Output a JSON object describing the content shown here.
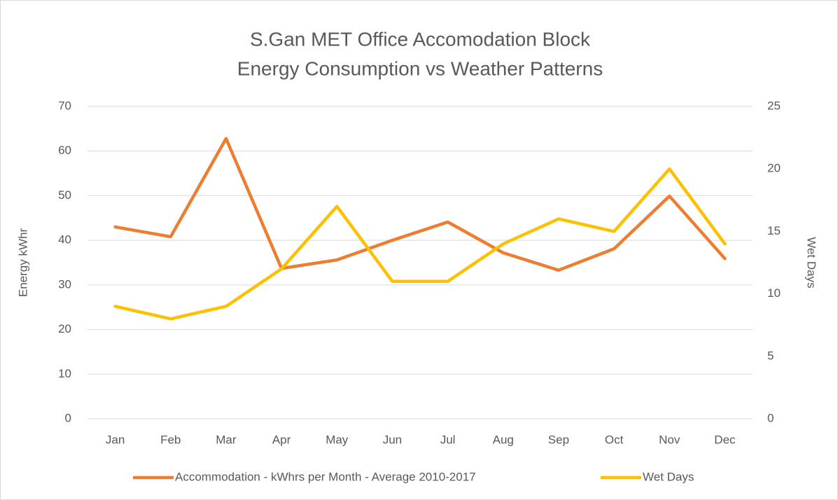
{
  "chart_data": {
    "type": "line",
    "title": [
      "S.Gan MET Office Accomodation Block",
      "Energy Consumption vs Weather Patterns"
    ],
    "ylabel": "Energy kWhr",
    "y2label": "Wet Days",
    "categories": [
      "Jan",
      "Feb",
      "Mar",
      "Apr",
      "May",
      "Jun",
      "Jul",
      "Aug",
      "Sep",
      "Oct",
      "Nov",
      "Dec"
    ],
    "series": [
      {
        "name": "Accommodation - kWhrs per Month - Average 2010-2017",
        "color": "#ed7d31",
        "axis": "y",
        "values": [
          43.0,
          40.8,
          62.8,
          33.7,
          35.6,
          40.0,
          44.1,
          37.2,
          33.3,
          38.1,
          49.9,
          35.9
        ]
      },
      {
        "name": "Wet Days",
        "color": "#ffc000",
        "axis": "y2",
        "values": [
          9,
          8,
          9,
          12,
          17,
          11,
          11,
          14,
          16,
          15,
          20,
          14
        ]
      }
    ],
    "ylim": [
      0,
      70
    ],
    "yticks": [
      0,
      10,
      20,
      30,
      40,
      50,
      60,
      70
    ],
    "y2lim": [
      0,
      25
    ],
    "y2ticks": [
      0,
      5,
      10,
      15,
      20,
      25
    ],
    "grid": true,
    "legend": "bottom"
  }
}
